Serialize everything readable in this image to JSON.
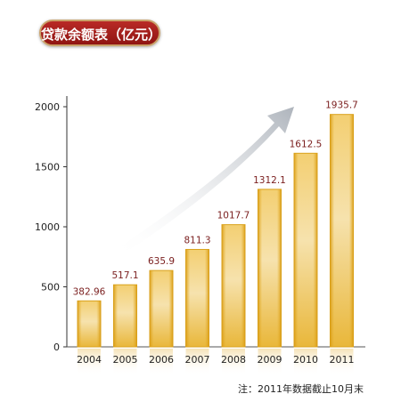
{
  "title": "贷款余额表（亿元）",
  "note": "注：2011年数据截止10月末",
  "chart_data": {
    "type": "bar",
    "categories": [
      "2004",
      "2005",
      "2006",
      "2007",
      "2008",
      "2009",
      "2010",
      "2011"
    ],
    "values": [
      382.96,
      517.1,
      635.9,
      811.3,
      1017.7,
      1312.1,
      1612.5,
      1935.7
    ],
    "value_labels": [
      "382.96",
      "517.1",
      "635.9",
      "811.3",
      "1017.7",
      "1312.1",
      "1612.5",
      "1935.7"
    ],
    "title": "贷款余额表（亿元）",
    "xlabel": "",
    "ylabel": "",
    "ylim": [
      0,
      2000
    ],
    "yticks": [
      0,
      500,
      1000,
      1500,
      2000
    ],
    "grid": false,
    "legend": "none",
    "bar_color": "#e8b623",
    "bar_highlight": "#f6e3b0",
    "label_color": "#7a1e1e",
    "trend_arrow": true
  }
}
